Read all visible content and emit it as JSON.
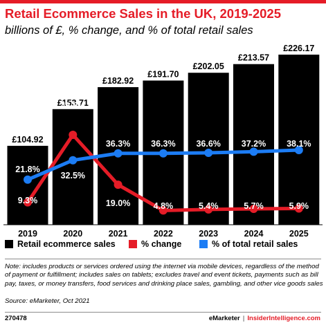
{
  "header": {
    "title": "Retail Ecommerce Sales in the UK, 2019-2025",
    "subtitle": "billions of £, % change, and % of total retail sales"
  },
  "colors": {
    "accent": "#e51c27",
    "bars": "#000000",
    "change": "#e51c27",
    "share": "#1c7cf4"
  },
  "chart_data": {
    "type": "bar",
    "categories": [
      "2019",
      "2020",
      "2021",
      "2022",
      "2023",
      "2024",
      "2025"
    ],
    "bar_labels": [
      "£104.92",
      "£153.71",
      "£182.92",
      "£191.70",
      "£202.05",
      "£213.57",
      "£226.17"
    ],
    "series": [
      {
        "name": "Retail ecommerce sales",
        "type": "bar",
        "values": [
          104.92,
          153.71,
          182.92,
          191.7,
          202.05,
          213.57,
          226.17
        ]
      },
      {
        "name": "% change",
        "type": "line",
        "values": [
          9.3,
          46.5,
          19.0,
          4.8,
          5.4,
          5.7,
          5.9
        ],
        "labels": [
          "9.3%",
          "46.5%",
          "19.0%",
          "4.8%",
          "5.4%",
          "5.7%",
          "5.9%"
        ]
      },
      {
        "name": "% of total retail sales",
        "type": "line",
        "values": [
          21.8,
          32.5,
          36.3,
          36.3,
          36.6,
          37.2,
          38.1
        ],
        "labels": [
          "21.8%",
          "32.5%",
          "36.3%",
          "36.3%",
          "36.6%",
          "37.2%",
          "38.1%"
        ]
      }
    ],
    "ylim": [
      0,
      226.17
    ],
    "grid": false,
    "legend_position": "bottom"
  },
  "legend": {
    "items": [
      {
        "label": "Retail ecommerce sales"
      },
      {
        "label": "% change"
      },
      {
        "label": "% of total retail sales"
      }
    ]
  },
  "footer": {
    "note": "Note: includes products or services ordered using the internet via mobile devices, regardless of the method of payment or fulfillment; includes sales on tablets; excludes travel and event tickets, payments such as bill pay, taxes, or money transfers, food services and drinking place sales, gambling, and other vice goods sales",
    "source": "Source: eMarketer, Oct 2021",
    "chart_id": "270478",
    "brand_left": "eMarketer",
    "separator": "|",
    "brand_right": "InsiderIntelligence.com"
  }
}
